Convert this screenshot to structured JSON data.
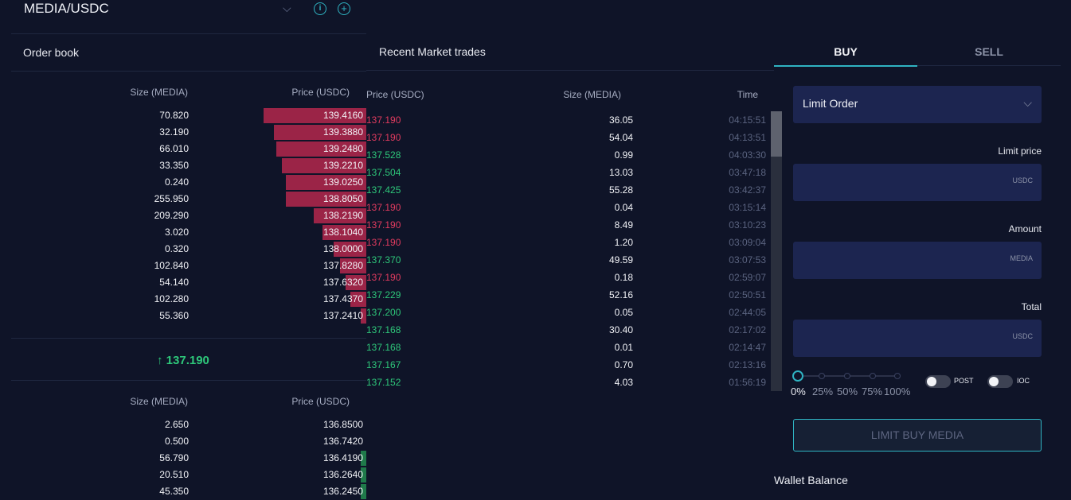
{
  "header": {
    "pair": "MEDIA/USDC"
  },
  "order_book": {
    "title": "Order book",
    "size_header": "Size (MEDIA)",
    "price_header": "Price (USDC)",
    "asks": [
      {
        "size": "70.820",
        "price": "139.4160",
        "depth": 0.29
      },
      {
        "size": "32.190",
        "price": "139.3880",
        "depth": 0.26
      },
      {
        "size": "66.010",
        "price": "139.2480",
        "depth": 0.253
      },
      {
        "size": "33.350",
        "price": "139.2210",
        "depth": 0.237
      },
      {
        "size": "0.240",
        "price": "139.0250",
        "depth": 0.226
      },
      {
        "size": "255.950",
        "price": "138.8050",
        "depth": 0.226
      },
      {
        "size": "209.290",
        "price": "138.2190",
        "depth": 0.149
      },
      {
        "size": "3.020",
        "price": "138.1040",
        "depth": 0.123
      },
      {
        "size": "0.320",
        "price": "138.0000",
        "depth": 0.093
      },
      {
        "size": "102.840",
        "price": "137.8280",
        "depth": 0.073
      },
      {
        "size": "54.140",
        "price": "137.6320",
        "depth": 0.059
      },
      {
        "size": "102.280",
        "price": "137.4370",
        "depth": 0.045
      },
      {
        "size": "55.360",
        "price": "137.2410",
        "depth": 0.016
      }
    ],
    "last_price": "137.190",
    "bids": [
      {
        "size": "2.650",
        "price": "136.8500",
        "depth": 0.0
      },
      {
        "size": "0.500",
        "price": "136.7420",
        "depth": 0.0
      },
      {
        "size": "56.790",
        "price": "136.4190",
        "depth": 0.016
      },
      {
        "size": "20.510",
        "price": "136.2640",
        "depth": 0.016
      },
      {
        "size": "45.350",
        "price": "136.2450",
        "depth": 0.016
      }
    ]
  },
  "trades": {
    "title": "Recent Market trades",
    "price_header": "Price (USDC)",
    "size_header": "Size (MEDIA)",
    "time_header": "Time",
    "rows": [
      {
        "price": "137.190",
        "size": "36.05",
        "time": "04:15:51",
        "side": "sell"
      },
      {
        "price": "137.190",
        "size": "54.04",
        "time": "04:13:51",
        "side": "sell"
      },
      {
        "price": "137.528",
        "size": "0.99",
        "time": "04:03:30",
        "side": "buy"
      },
      {
        "price": "137.504",
        "size": "13.03",
        "time": "03:47:18",
        "side": "buy"
      },
      {
        "price": "137.425",
        "size": "55.28",
        "time": "03:42:37",
        "side": "buy"
      },
      {
        "price": "137.190",
        "size": "0.04",
        "time": "03:15:14",
        "side": "sell"
      },
      {
        "price": "137.190",
        "size": "8.49",
        "time": "03:10:23",
        "side": "sell"
      },
      {
        "price": "137.190",
        "size": "1.20",
        "time": "03:09:04",
        "side": "sell"
      },
      {
        "price": "137.370",
        "size": "49.59",
        "time": "03:07:53",
        "side": "buy"
      },
      {
        "price": "137.190",
        "size": "0.18",
        "time": "02:59:07",
        "side": "sell"
      },
      {
        "price": "137.229",
        "size": "52.16",
        "time": "02:50:51",
        "side": "buy"
      },
      {
        "price": "137.200",
        "size": "0.05",
        "time": "02:44:05",
        "side": "buy"
      },
      {
        "price": "137.168",
        "size": "30.40",
        "time": "02:17:02",
        "side": "buy"
      },
      {
        "price": "137.168",
        "size": "0.01",
        "time": "02:14:47",
        "side": "buy"
      },
      {
        "price": "137.167",
        "size": "0.70",
        "time": "02:13:16",
        "side": "buy"
      },
      {
        "price": "137.152",
        "size": "4.03",
        "time": "01:56:19",
        "side": "buy"
      }
    ]
  },
  "order_form": {
    "tabs": [
      {
        "label": "BUY",
        "active": true
      },
      {
        "label": "SELL",
        "active": false
      }
    ],
    "order_type": "Limit Order",
    "limit_price_label": "Limit price",
    "limit_price_unit": "USDC",
    "amount_label": "Amount",
    "amount_unit": "MEDIA",
    "total_label": "Total",
    "total_unit": "USDC",
    "percent_options": [
      "0%",
      "25%",
      "50%",
      "75%",
      "100%"
    ],
    "post_label": "POST",
    "ioc_label": "IOC",
    "submit_label": "LIMIT BUY MEDIA",
    "wallet_label": "Wallet Balance"
  },
  "colors": {
    "ask": "#9b2447",
    "bid": "#1f7a4a",
    "sell_text": "#e23b5f",
    "buy_text": "#2ec77a",
    "accent": "#2fb3c2"
  },
  "icons": [
    "chevron-down-icon",
    "info-icon",
    "plus-circle-icon",
    "arrow-up-icon"
  ]
}
